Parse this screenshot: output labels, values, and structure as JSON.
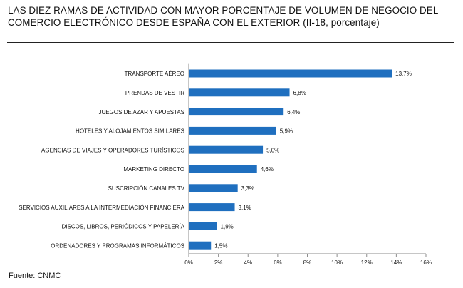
{
  "chart_data": {
    "type": "bar",
    "orientation": "horizontal",
    "title": "LAS DIEZ RAMAS DE ACTIVIDAD CON MAYOR PORCENTAJE DE VOLUMEN DE NEGOCIO DEL COMERCIO ELECTRÓNICO DESDE ESPAÑA CON EL EXTERIOR (II-18, porcentaje)",
    "categories": [
      "TRANSPORTE AÉREO",
      "PRENDAS DE VESTIR",
      "JUEGOS DE AZAR Y APUESTAS",
      "HOTELES  Y ALOJAMIENTOS SIMILARES",
      "AGENCIAS DE VIAJES Y OPERADORES TURÍSTICOS",
      "MARKETING DIRECTO",
      "SUSCRIPCIÓN CANALES TV",
      "SERVICIOS AUXILIARES A LA INTERMEDIACIÓN FINANCIERA",
      "DISCOS, LIBROS, PERIÓDICOS Y PAPELERÍA",
      "ORDENADORES Y PROGRAMAS INFORMÁTICOS"
    ],
    "values": [
      13.7,
      6.8,
      6.4,
      5.9,
      5.0,
      4.6,
      3.3,
      3.1,
      1.9,
      1.5
    ],
    "value_labels": [
      "13,7%",
      "6,8%",
      "6,4%",
      "5,9%",
      "5,0%",
      "4,6%",
      "3,3%",
      "3,1%",
      "1,9%",
      "1,5%"
    ],
    "xlim": [
      0,
      16
    ],
    "xticks": [
      0,
      2,
      4,
      6,
      8,
      10,
      12,
      14,
      16
    ],
    "xtick_labels": [
      "0%",
      "2%",
      "4%",
      "6%",
      "8%",
      "10%",
      "12%",
      "14%",
      "16%"
    ],
    "xlabel": "",
    "ylabel": "",
    "grid": false,
    "legend": "none",
    "bar_color": "#1f6fbf"
  },
  "source": "Fuente: CNMC"
}
